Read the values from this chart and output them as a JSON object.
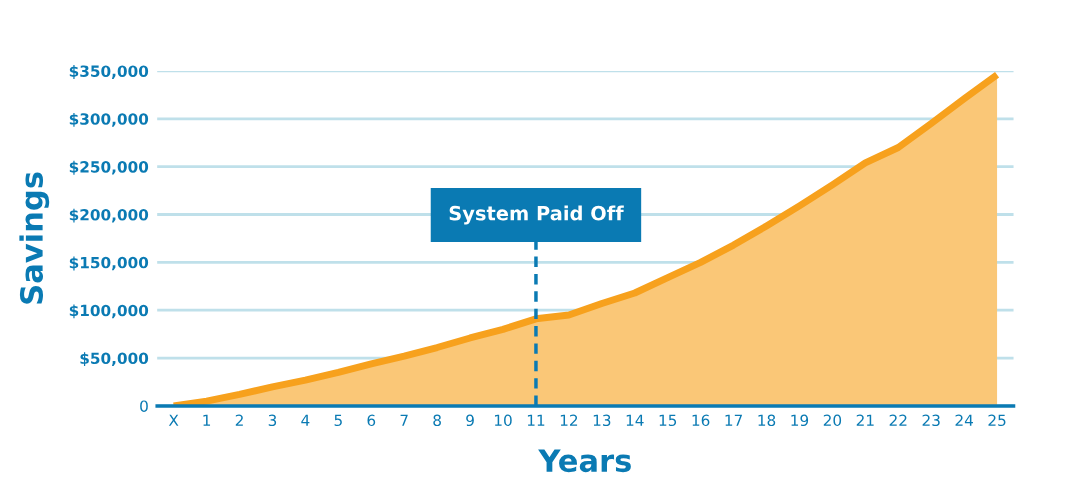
{
  "chart_data": {
    "type": "area",
    "xlabel": "Years",
    "ylabel": "Savings",
    "categories": [
      "X",
      "1",
      "2",
      "3",
      "4",
      "5",
      "6",
      "7",
      "8",
      "9",
      "10",
      "11",
      "12",
      "13",
      "14",
      "15",
      "16",
      "17",
      "18",
      "19",
      "20",
      "21",
      "22",
      "23",
      "24",
      "25"
    ],
    "series": [
      {
        "color": "#f7a11d",
        "values": [
          0,
          5000,
          12000,
          20000,
          27000,
          35000,
          44000,
          52000,
          61000,
          71000,
          80000,
          91000,
          95000,
          107000,
          118000,
          134000,
          150000,
          168000,
          188000,
          209000,
          231000,
          254000,
          270000,
          295000,
          321000,
          346000
        ]
      }
    ],
    "ylim": [
      0,
      350000
    ],
    "yticks": [
      0,
      {
        "value": 50000,
        "label": "$50,000"
      },
      {
        "value": 100000,
        "label": "$100,000"
      },
      {
        "value": 150000,
        "label": "$150,000"
      },
      {
        "value": 200000,
        "label": "$200,000"
      },
      {
        "value": 250000,
        "label": "$250,000"
      },
      {
        "value": 300000,
        "label": "$300,000"
      },
      {
        "value": 350000,
        "label": "$350,000"
      }
    ],
    "grid": "y",
    "ref_lines": [
      {
        "axis": "x",
        "value": "11",
        "label": "System Paid Off",
        "line_style": "dashed",
        "color": "#0a7ab3"
      }
    ]
  }
}
